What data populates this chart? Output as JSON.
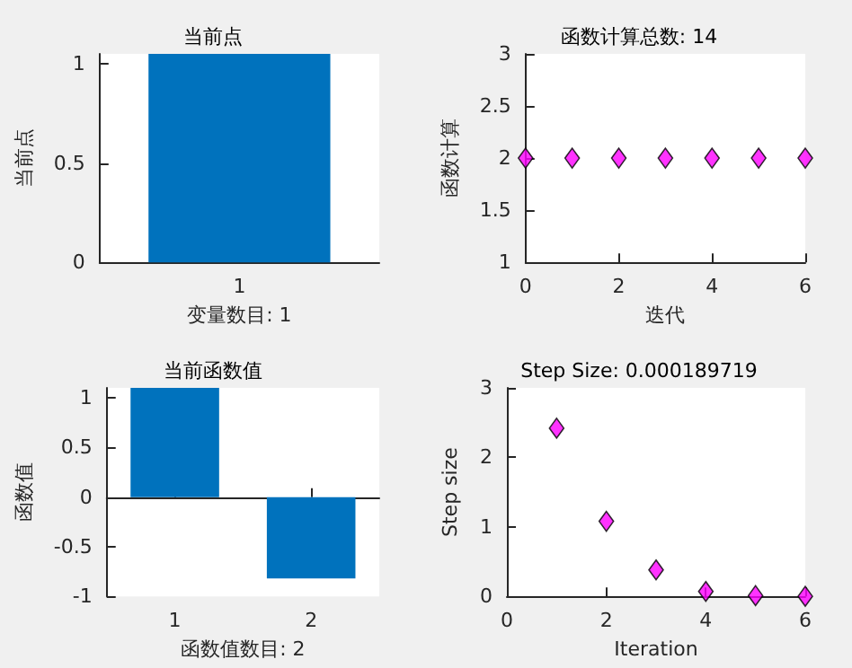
{
  "chart_data": [
    {
      "type": "bar",
      "title": "当前点",
      "xlabel": "变量数目: 1",
      "ylabel": "当前点",
      "categories": [
        "1"
      ],
      "values": [
        1.05
      ],
      "color": "#0072bd",
      "ylim": [
        0,
        1.05
      ],
      "yticks": [
        0,
        0.5,
        1
      ]
    },
    {
      "type": "scatter",
      "title": "函数计算总数: 14",
      "xlabel": "迭代",
      "ylabel": "函数计算",
      "x": [
        0,
        1,
        2,
        3,
        4,
        5,
        6
      ],
      "values": [
        2,
        2,
        2,
        2,
        2,
        2,
        2
      ],
      "color": "#ff00ff",
      "marker": "diamond",
      "xlim": [
        0,
        6
      ],
      "xticks": [
        0,
        2,
        4,
        6
      ],
      "ylim": [
        1,
        3
      ],
      "yticks": [
        1,
        1.5,
        2,
        2.5,
        3
      ]
    },
    {
      "type": "bar",
      "title": "当前函数值",
      "xlabel": "函数值数目: 2",
      "ylabel": "函数值",
      "categories": [
        "1",
        "2"
      ],
      "values": [
        1.1,
        -0.82
      ],
      "color": "#0072bd",
      "ylim": [
        -1,
        1.1
      ],
      "yticks": [
        -1,
        -0.5,
        0,
        0.5,
        1
      ]
    },
    {
      "type": "scatter",
      "title": "Step Size: 0.000189719",
      "xlabel": "Iteration",
      "ylabel": "Step size",
      "x": [
        1,
        2,
        3,
        4,
        5,
        6
      ],
      "values": [
        2.42,
        1.08,
        0.38,
        0.07,
        0.01,
        0
      ],
      "color": "#ff00ff",
      "marker": "diamond",
      "xlim": [
        0,
        6
      ],
      "xticks": [
        0,
        2,
        4,
        6
      ],
      "ylim": [
        0,
        3
      ],
      "yticks": [
        0,
        1,
        2,
        3
      ]
    }
  ]
}
